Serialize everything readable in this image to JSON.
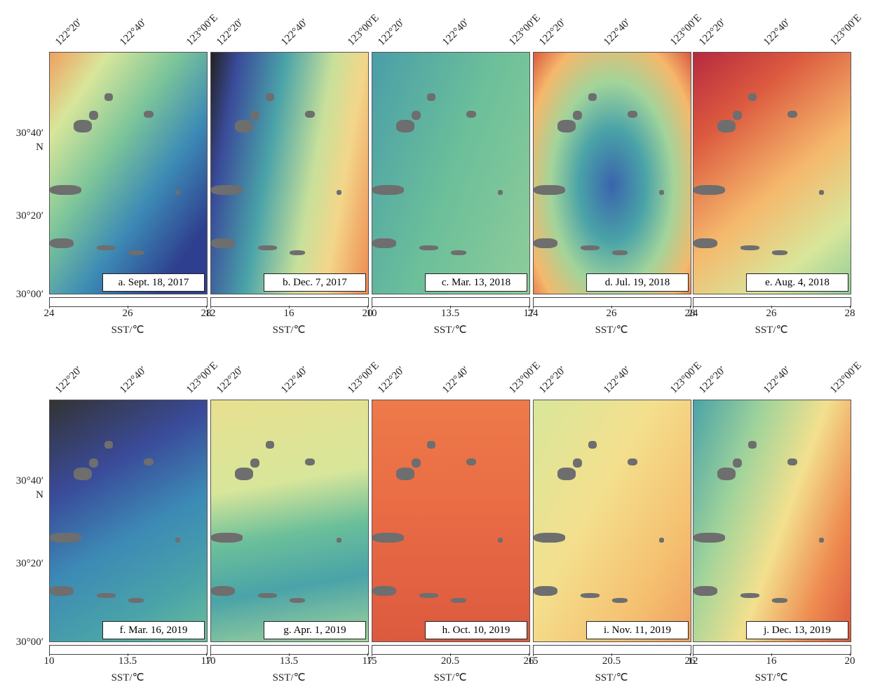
{
  "colormap": [
    "#3b3f9a",
    "#3a64ad",
    "#3c8ab5",
    "#4aa3a8",
    "#6bbf9a",
    "#a2d49a",
    "#d8e69a",
    "#f3e08e",
    "#f5b86c",
    "#ee8a50",
    "#dc5a3f",
    "#b72a3f",
    "#8c1040"
  ],
  "rows": [
    {
      "lat_labels": [
        "30°40′",
        "N",
        "30°20′",
        "30°00′"
      ],
      "panels": [
        {
          "caption": "a. Sept. 18, 2017",
          "lon_labels": [
            "122°20′",
            "122°40′",
            "123°00′E"
          ],
          "colorbar": {
            "ticks": [
              24,
              26,
              28
            ],
            "label": "SST/℃"
          }
        },
        {
          "caption": "b. Dec. 7, 2017",
          "lon_labels": [
            "122°20′",
            "122°40′",
            "123°00′E"
          ],
          "colorbar": {
            "ticks": [
              12,
              16,
              20
            ],
            "label": "SST/℃"
          }
        },
        {
          "caption": "c. Mar. 13, 2018",
          "lon_labels": [
            "122°20′",
            "122°40′",
            "123°00′E"
          ],
          "colorbar": {
            "ticks": [
              10,
              13.5,
              17
            ],
            "label": "SST/℃"
          }
        },
        {
          "caption": "d. Jul. 19, 2018",
          "lon_labels": [
            "122°20′",
            "122°40′",
            "123°00′E"
          ],
          "colorbar": {
            "ticks": [
              24,
              26,
              28
            ],
            "label": "SST/℃"
          }
        },
        {
          "caption": "e. Aug. 4, 2018",
          "lon_labels": [
            "122°20′",
            "122°40′",
            "123°00′E"
          ],
          "colorbar": {
            "ticks": [
              24,
              26,
              28
            ],
            "label": "SST/℃"
          }
        }
      ]
    },
    {
      "lat_labels": [
        "30°40′",
        "N",
        "30°20′",
        "30°00′"
      ],
      "panels": [
        {
          "caption": "f. Mar. 16, 2019",
          "lon_labels": [
            "122°20′",
            "122°40′",
            "123°00′E"
          ],
          "colorbar": {
            "ticks": [
              10,
              13.5,
              17
            ],
            "label": "SST/℃"
          }
        },
        {
          "caption": "g. Apr. 1, 2019",
          "lon_labels": [
            "122°20′",
            "122°40′",
            "123°00′E"
          ],
          "colorbar": {
            "ticks": [
              10,
              13.5,
              17
            ],
            "label": "SST/℃"
          }
        },
        {
          "caption": "h. Oct. 10, 2019",
          "lon_labels": [
            "122°20′",
            "122°40′",
            "123°00′E"
          ],
          "colorbar": {
            "ticks": [
              15,
              20.5,
              26
            ],
            "label": "SST/℃"
          }
        },
        {
          "caption": "i. Nov. 11, 2019",
          "lon_labels": [
            "122°20′",
            "122°40′",
            "123°00′E"
          ],
          "colorbar": {
            "ticks": [
              15,
              20.5,
              26
            ],
            "label": "SST/℃"
          }
        },
        {
          "caption": "j. Dec. 13, 2019",
          "lon_labels": [
            "122°20′",
            "122°40′",
            "123°00′E"
          ],
          "colorbar": {
            "ticks": [
              12,
              16,
              20
            ],
            "label": "SST/℃"
          }
        }
      ]
    }
  ]
}
